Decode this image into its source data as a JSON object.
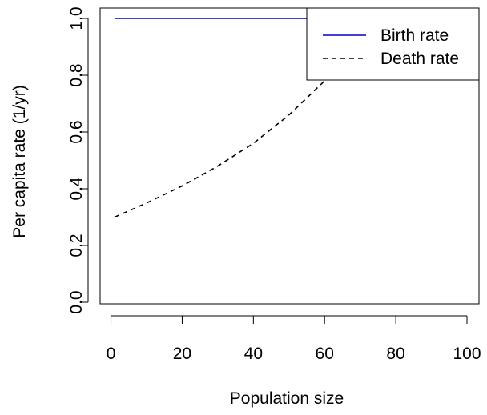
{
  "chart_data": {
    "type": "line",
    "title": "",
    "xlabel": "Population size",
    "ylabel": "Per capita rate (1/yr)",
    "xlim": [
      1,
      100
    ],
    "ylim": [
      0,
      1.0
    ],
    "x_ticks": [
      0,
      20,
      40,
      60,
      80,
      100
    ],
    "y_ticks": [
      0.0,
      0.2,
      0.4,
      0.6,
      0.8,
      1.0
    ],
    "x_tick_labels": [
      "0",
      "20",
      "40",
      "60",
      "80",
      "100"
    ],
    "y_tick_labels": [
      "0.0",
      "0.2",
      "0.4",
      "0.6",
      "0.8",
      "1.0"
    ],
    "grid": false,
    "legend_position": "top-right",
    "series": [
      {
        "name": "Birth rate",
        "color": "#0000cc",
        "line_style": "solid",
        "x": [
          1,
          10,
          20,
          30,
          40,
          50,
          60,
          70,
          80,
          90,
          100
        ],
        "y": [
          1.0,
          1.0,
          1.0,
          1.0,
          1.0,
          1.0,
          1.0,
          1.0,
          1.0,
          1.0,
          1.0
        ]
      },
      {
        "name": "Death rate",
        "color": "#000000",
        "line_style": "dashed",
        "x": [
          1,
          10,
          20,
          30,
          40,
          50,
          60,
          70,
          74
        ],
        "y": [
          0.3,
          0.35,
          0.41,
          0.48,
          0.56,
          0.66,
          0.78,
          0.92,
          1.03
        ]
      }
    ]
  }
}
